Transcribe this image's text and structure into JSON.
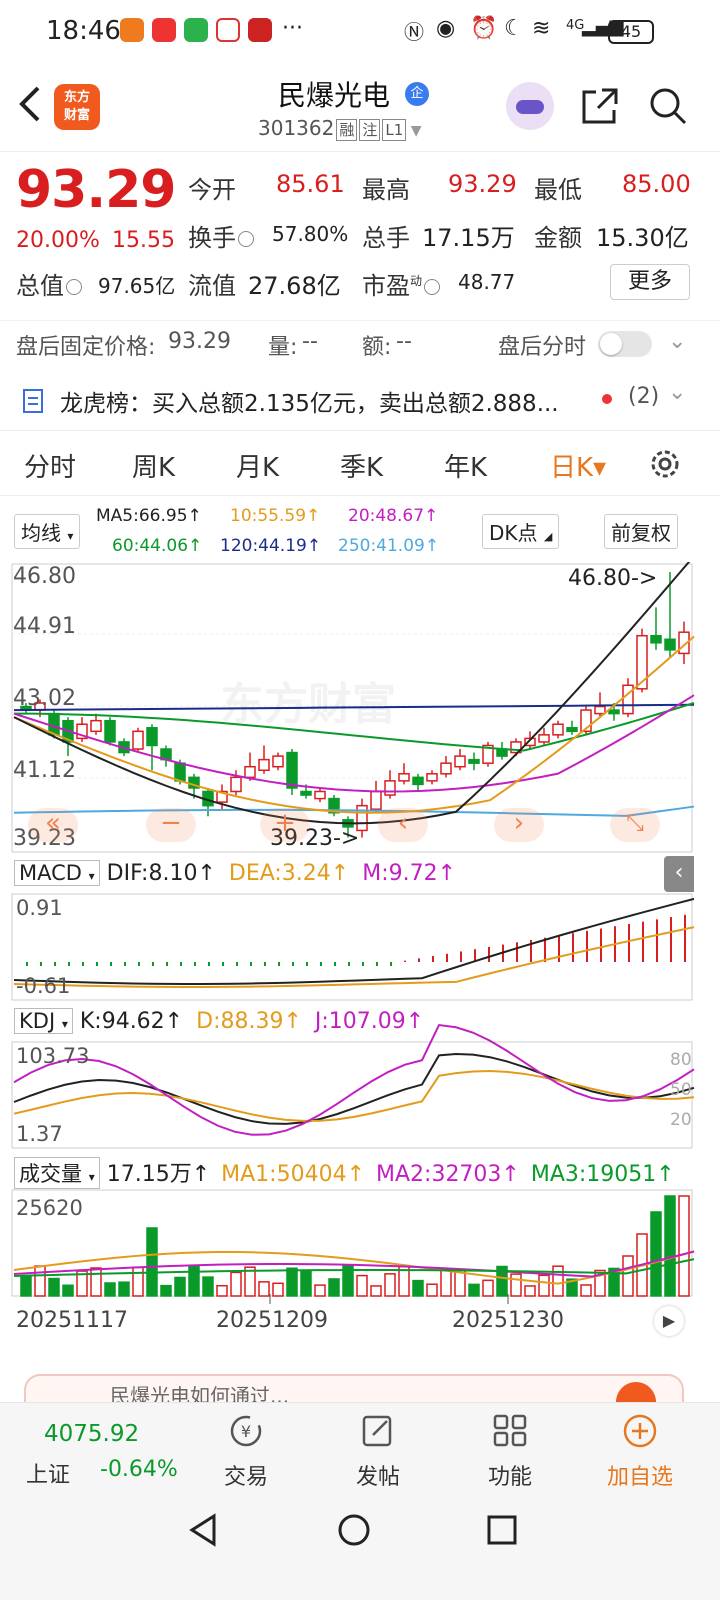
{
  "status_bar": {
    "time": "18:46",
    "more": "···",
    "network": "4G",
    "battery": "45"
  },
  "header": {
    "logo_text_1": "东方",
    "logo_text_2": "财富",
    "title": "民爆光电",
    "badge": "企",
    "code": "301362",
    "tags": [
      "融",
      "注",
      "L1"
    ]
  },
  "quote": {
    "price": "93.29",
    "change_pct": "20.00%",
    "change": "15.55",
    "open_label": "今开",
    "open": "85.61",
    "high_label": "最高",
    "high": "93.29",
    "low_label": "最低",
    "low": "85.00",
    "turnover_label": "换手",
    "turnover": "57.80%",
    "volume_label": "总手",
    "volume": "17.15万",
    "amount_label": "金额",
    "amount": "15.30亿",
    "mktcap_label": "总值",
    "mktcap": "97.65亿",
    "float_label": "流值",
    "float": "27.68亿",
    "pe_label": "市盈",
    "pe_sup": "动",
    "pe": "48.77",
    "more": "更多"
  },
  "after_hours": {
    "price_label": "盘后固定价格:",
    "price": "93.29",
    "vol_label": "量:",
    "vol": "--",
    "amt_label": "额:",
    "amt": "--",
    "chart_label": "盘后分时"
  },
  "longhu": {
    "text": "龙虎榜：买入总额2.135亿元，卖出总额2.888...",
    "count": "(2)"
  },
  "tabs": [
    "分时",
    "周K",
    "月K",
    "季K",
    "年K",
    "日K▾"
  ],
  "ma_bar": {
    "selector": "均线",
    "ma5": "MA5:66.95↑",
    "ma10": "10:55.59↑",
    "ma20": "20:48.67↑",
    "ma60": "60:44.06↑",
    "ma120": "120:44.19↑",
    "ma250": "250:41.09↑",
    "dk": "DK点",
    "adjust": "前复权"
  },
  "kline": {
    "y_labels": [
      "46.80",
      "44.91",
      "43.02",
      "41.12",
      "39.23"
    ],
    "max_marker": "46.80->",
    "min_marker": "39.23->"
  },
  "macd": {
    "selector": "MACD",
    "dif": "DIF:8.10↑",
    "dea": "DEA:3.24↑",
    "m": "M:9.72↑",
    "y_top": "0.91",
    "y_bottom": "-0.61"
  },
  "kdj": {
    "selector": "KDJ",
    "k": "K:94.62↑",
    "d": "D:88.39↑",
    "j": "J:107.09↑",
    "y_top": "103.73",
    "y_bottom": "1.37",
    "levels": [
      "80",
      "50",
      "20"
    ]
  },
  "volume": {
    "selector": "成交量",
    "total": "17.15万↑",
    "ma1": "MA1:50404↑",
    "ma2": "MA2:32703↑",
    "ma3": "MA3:19051↑",
    "y_top": "25620"
  },
  "dates": [
    "20251117",
    "20251209",
    "20251230"
  ],
  "watermark": "东方财富",
  "ad_text": "民爆光电如何通过...",
  "bottom_bar": {
    "index_value": "4075.92",
    "index_name": "上证",
    "index_pct": "-0.64%",
    "items": [
      "交易",
      "发帖",
      "功能",
      "加自选"
    ]
  },
  "colors": {
    "up": "#d81e1e",
    "down": "#0a9a2a",
    "accent": "#e8771e"
  }
}
